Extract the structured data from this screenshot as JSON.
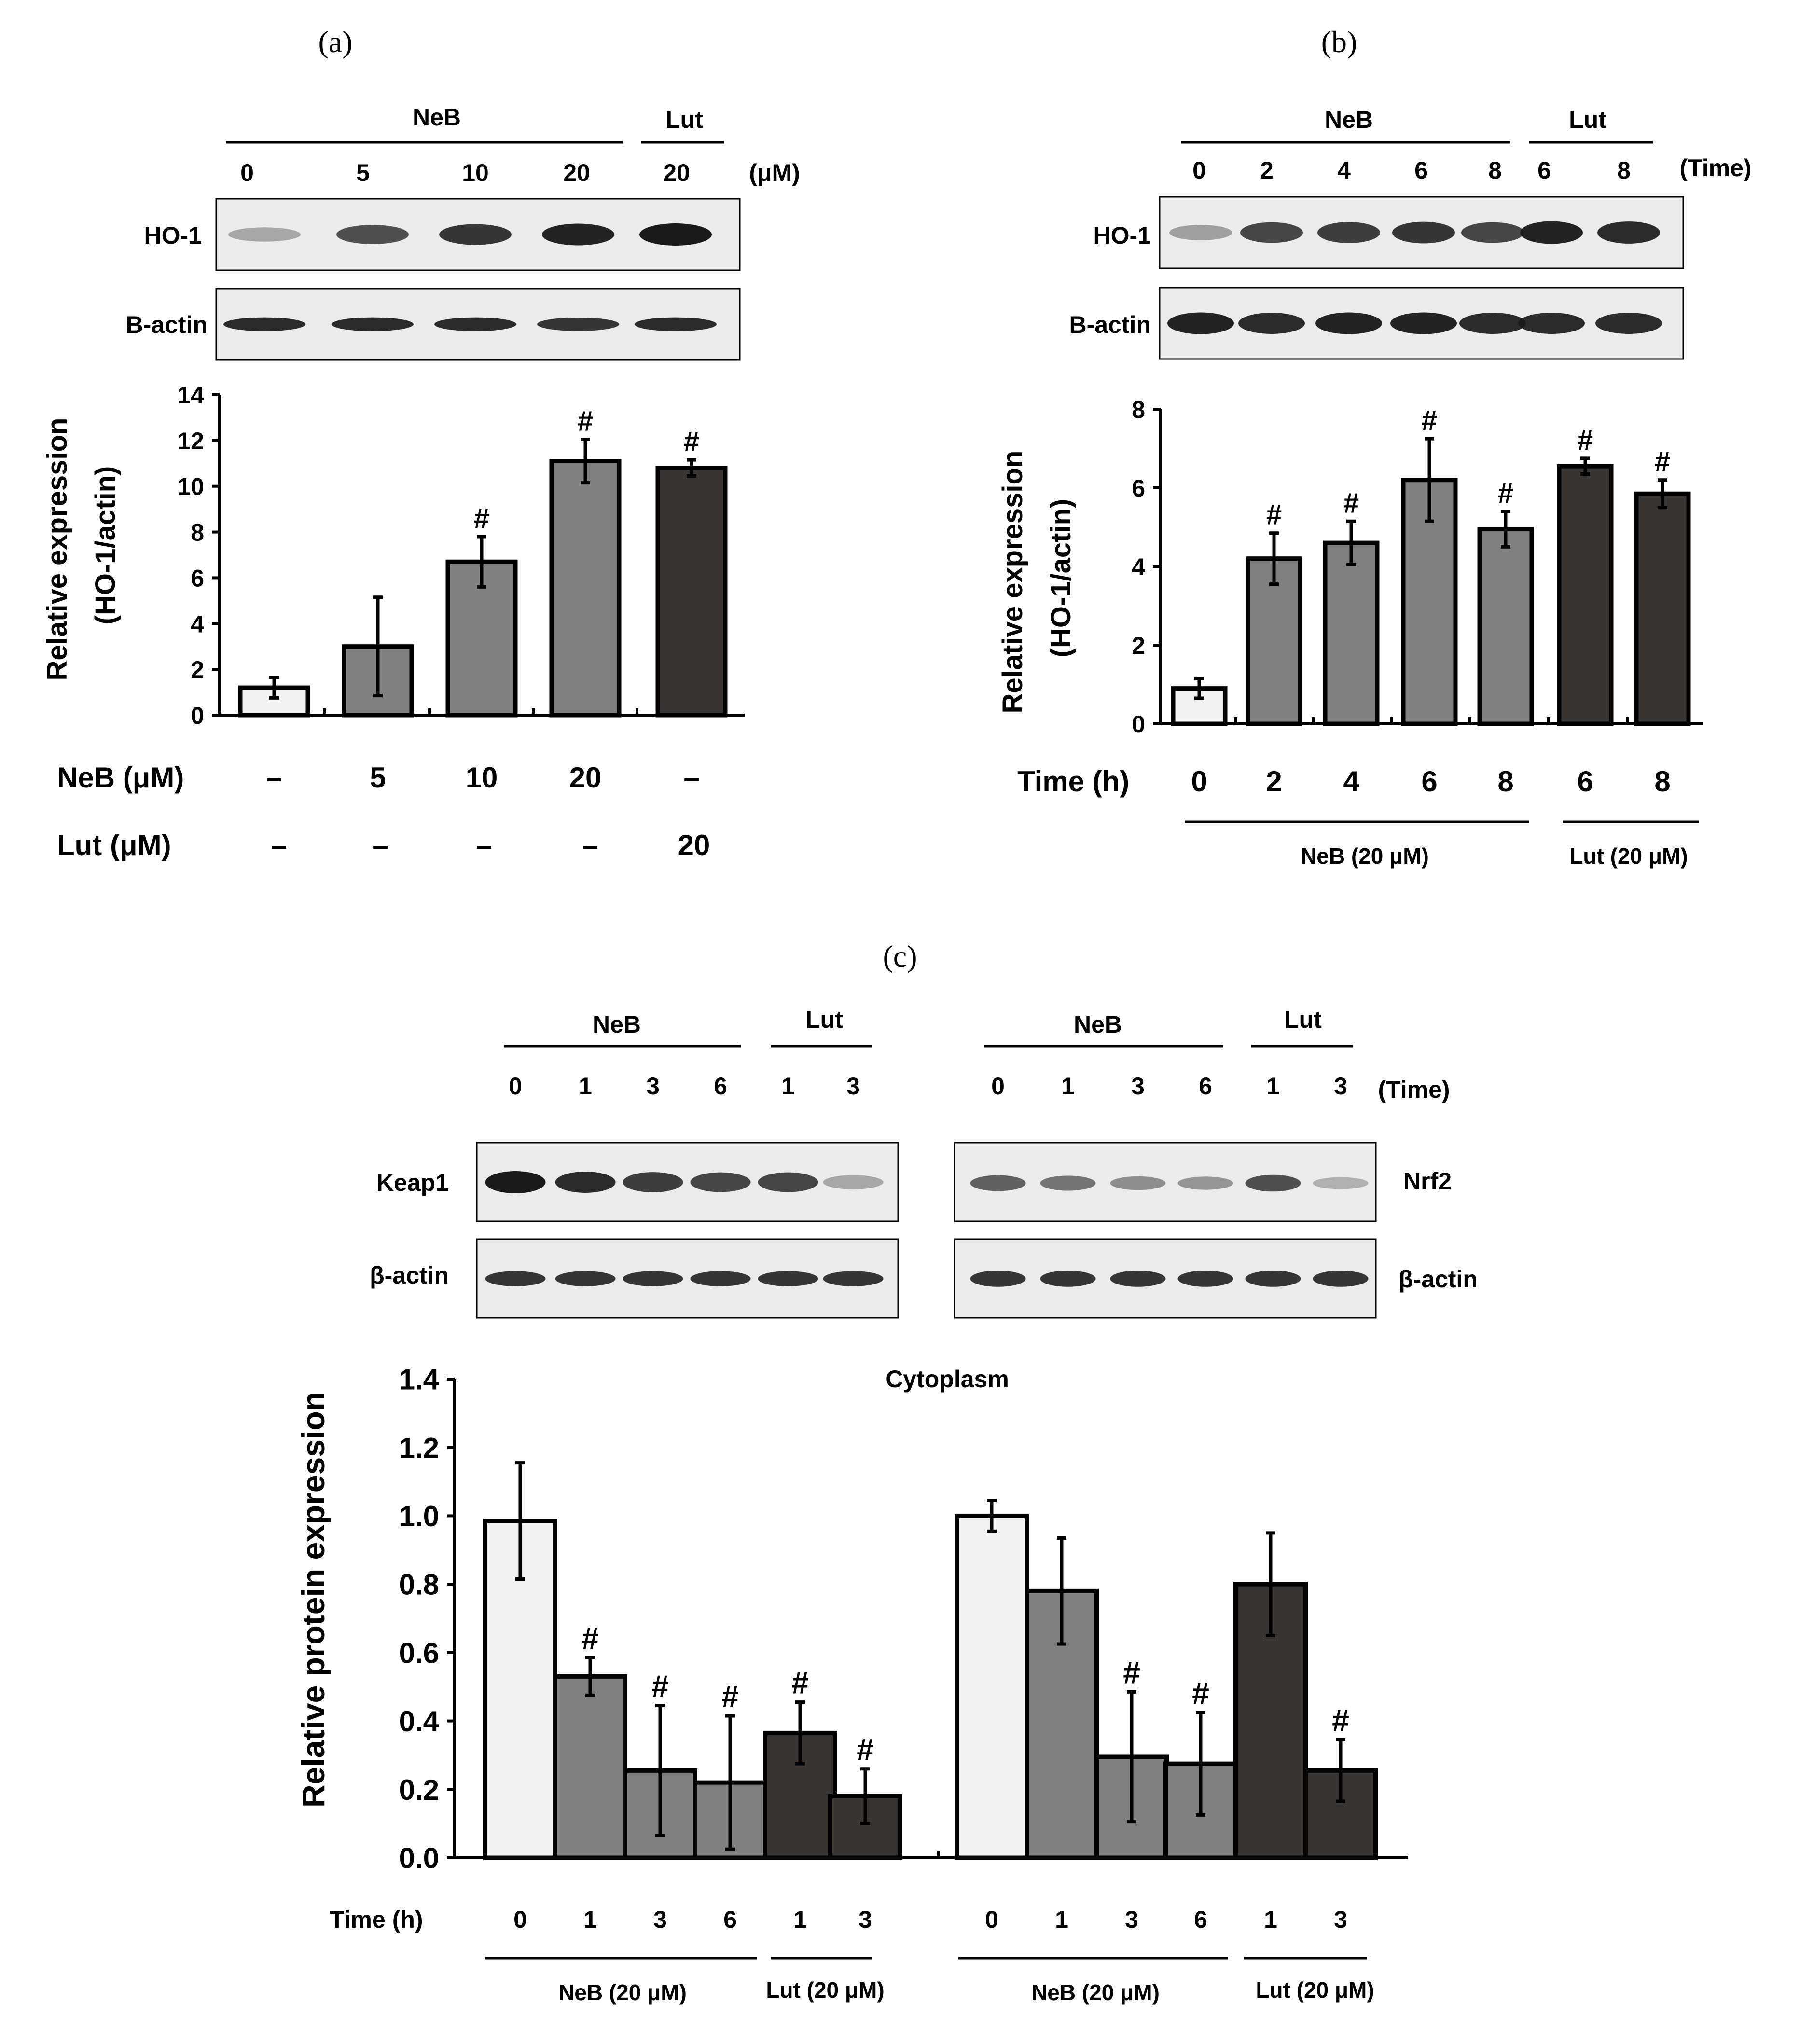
{
  "colors": {
    "white_bar": "#f2f2f2",
    "grey_bar": "#808080",
    "dark_bar": "#383533",
    "band": "#1a1a1a",
    "blot_bg": "#ebebeb"
  },
  "panel_a": {
    "label": "(a)",
    "blot": {
      "group_labels": [
        "NeB",
        "Lut"
      ],
      "lane_labels": [
        "0",
        "5",
        "10",
        "20",
        "20"
      ],
      "unit": "(μM)",
      "rows": [
        "HO-1",
        "B-actin"
      ],
      "band_intensity": [
        [
          0.2,
          0.7,
          0.85,
          0.95,
          1.0
        ],
        [
          0.9,
          0.9,
          0.9,
          0.85,
          0.9
        ]
      ]
    },
    "conditions": [
      {
        "label": "NeB (μM)",
        "values": [
          "–",
          "5",
          "10",
          "20",
          "–"
        ]
      },
      {
        "label": "Lut (μM)",
        "values": [
          "–",
          "–",
          "–",
          "–",
          "20"
        ]
      }
    ]
  },
  "panel_b": {
    "label": "(b)",
    "blot": {
      "group_labels": [
        "NeB",
        "Lut"
      ],
      "lane_labels": [
        "0",
        "2",
        "4",
        "6",
        "8",
        "6",
        "8"
      ],
      "unit": "(Time)",
      "rows": [
        "HO-1",
        "B-actin"
      ],
      "band_intensity": [
        [
          0.25,
          0.75,
          0.8,
          0.85,
          0.75,
          0.95,
          0.9
        ],
        [
          0.95,
          0.9,
          0.95,
          0.95,
          0.9,
          0.9,
          0.9
        ]
      ]
    },
    "xrow_label": "Time (h)",
    "group_labels_bottom": [
      "NeB (20 μM)",
      "Lut (20 μM)"
    ]
  },
  "panel_c": {
    "label": "(c)",
    "blot_left": {
      "group_labels": [
        "NeB",
        "Lut"
      ],
      "lane_labels": [
        "0",
        "1",
        "3",
        "6",
        "1",
        "3"
      ],
      "rows": [
        "Keap1",
        "β-actin"
      ],
      "band_intensity": [
        [
          1.0,
          0.9,
          0.8,
          0.75,
          0.75,
          0.2
        ],
        [
          0.85,
          0.85,
          0.85,
          0.85,
          0.85,
          0.85
        ]
      ]
    },
    "blot_right": {
      "group_labels": [
        "NeB",
        "Lut"
      ],
      "lane_labels": [
        "0",
        "1",
        "3",
        "6",
        "1",
        "3"
      ],
      "unit": "(Time)",
      "rows": [
        "Nrf2",
        "β-actin"
      ],
      "band_intensity": [
        [
          0.6,
          0.5,
          0.35,
          0.3,
          0.7,
          0.15
        ],
        [
          0.85,
          0.85,
          0.85,
          0.85,
          0.85,
          0.85
        ]
      ]
    },
    "xrow_label": "Time (h)",
    "group_labels_bottom": [
      "NeB (20 μM)",
      "Lut (20 μM)",
      "NeB (20 μM)",
      "Lut (20 μM)"
    ]
  },
  "chart_data": [
    {
      "type": "bar",
      "title": "",
      "xlabel": "",
      "ylabel": "Relative expression (HO-1/actin)",
      "ylim": [
        0,
        14
      ],
      "yticks": [
        0,
        2,
        4,
        6,
        8,
        10,
        12,
        14
      ],
      "categories": [
        "–",
        "5",
        "10",
        "20",
        "–"
      ],
      "values": [
        1.2,
        3.0,
        6.7,
        11.1,
        10.8
      ],
      "errors": [
        0.45,
        2.15,
        1.1,
        0.95,
        0.35
      ],
      "significance": [
        "",
        "",
        "#",
        "#",
        "#"
      ],
      "colors": [
        "white",
        "grey",
        "grey",
        "grey",
        "dark"
      ]
    },
    {
      "type": "bar",
      "title": "",
      "xlabel": "Time (h)",
      "ylabel": "Relative expression (HO-1/actin)",
      "ylim": [
        0,
        8
      ],
      "yticks": [
        0,
        2,
        4,
        6,
        8
      ],
      "categories": [
        "0",
        "2",
        "4",
        "6",
        "8",
        "6",
        "8"
      ],
      "values": [
        0.9,
        4.2,
        4.6,
        6.2,
        4.95,
        6.55,
        5.85
      ],
      "errors": [
        0.25,
        0.65,
        0.55,
        1.05,
        0.45,
        0.2,
        0.35
      ],
      "significance": [
        "",
        "#",
        "#",
        "#",
        "#",
        "#",
        "#"
      ],
      "colors": [
        "white",
        "grey",
        "grey",
        "grey",
        "grey",
        "dark",
        "dark"
      ]
    },
    {
      "type": "bar",
      "title": "Cytoplasm",
      "xlabel": "Time (h)",
      "ylabel": "Relative protein expression",
      "ylim": [
        0,
        1.4
      ],
      "yticks": [
        "0.0",
        "0.2",
        "0.4",
        "0.6",
        "0.8",
        "1.0",
        "1.2",
        "1.4"
      ],
      "series": [
        {
          "name": "Keap1",
          "categories": [
            "0",
            "1",
            "3",
            "6",
            "1",
            "3"
          ],
          "values": [
            0.985,
            0.53,
            0.255,
            0.22,
            0.365,
            0.18
          ],
          "errors": [
            0.17,
            0.055,
            0.19,
            0.195,
            0.09,
            0.08
          ],
          "significance": [
            "",
            "#",
            "#",
            "#",
            "#",
            "#"
          ],
          "colors": [
            "white",
            "grey",
            "grey",
            "grey",
            "dark",
            "dark"
          ]
        },
        {
          "name": "Nrf2",
          "categories": [
            "0",
            "1",
            "3",
            "6",
            "1",
            "3"
          ],
          "values": [
            1.0,
            0.78,
            0.295,
            0.275,
            0.8,
            0.255
          ],
          "errors": [
            0.045,
            0.155,
            0.19,
            0.15,
            0.15,
            0.09
          ],
          "significance": [
            "",
            "",
            "#",
            "#",
            "",
            "#"
          ],
          "colors": [
            "white",
            "grey",
            "grey",
            "grey",
            "dark",
            "dark"
          ]
        }
      ]
    }
  ]
}
